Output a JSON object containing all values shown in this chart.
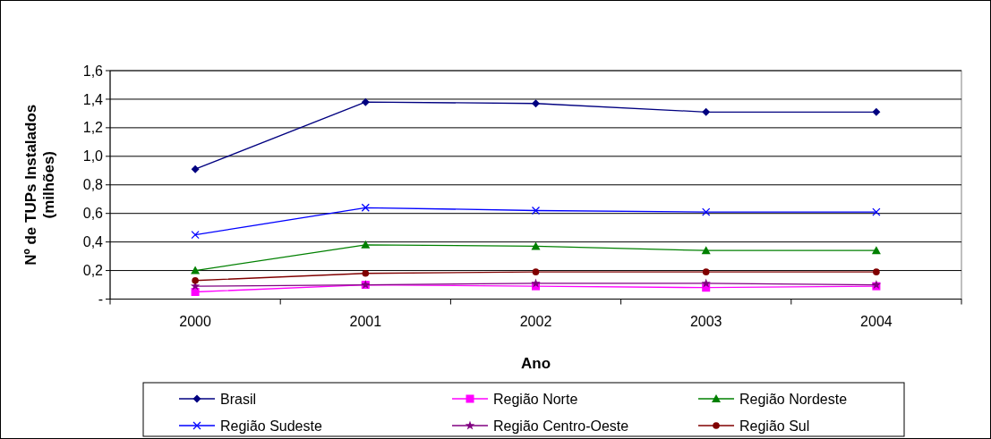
{
  "chart_data": {
    "type": "line",
    "xlabel": "Ano",
    "ylabel": "Nº de TUPs Instalados (milhões)",
    "categories": [
      "2000",
      "2001",
      "2002",
      "2003",
      "2004"
    ],
    "series": [
      {
        "name": "Brasil",
        "color": "#000080",
        "marker": "diamond",
        "values": [
          0.91,
          1.38,
          1.37,
          1.31,
          1.31
        ]
      },
      {
        "name": "Região Norte",
        "color": "#ff00ff",
        "marker": "square",
        "values": [
          0.05,
          0.1,
          0.09,
          0.08,
          0.09
        ]
      },
      {
        "name": "Região Nordeste",
        "color": "#008000",
        "marker": "triangle",
        "values": [
          0.2,
          0.38,
          0.37,
          0.34,
          0.34
        ]
      },
      {
        "name": "Região Sudeste",
        "color": "#0000ff",
        "marker": "cross",
        "values": [
          0.45,
          0.64,
          0.62,
          0.61,
          0.61
        ]
      },
      {
        "name": "Região Centro-Oeste",
        "color": "#800080",
        "marker": "star",
        "values": [
          0.09,
          0.1,
          0.11,
          0.11,
          0.1
        ]
      },
      {
        "name": "Região Sul",
        "color": "#800000",
        "marker": "circle",
        "values": [
          0.13,
          0.18,
          0.19,
          0.19,
          0.19
        ]
      }
    ],
    "ylim": [
      0,
      1.6
    ],
    "yticks": [
      {
        "value": 0,
        "label": "-"
      },
      {
        "value": 0.2,
        "label": "0,2"
      },
      {
        "value": 0.4,
        "label": "0,4"
      },
      {
        "value": 0.6,
        "label": "0,6"
      },
      {
        "value": 0.8,
        "label": "0,8"
      },
      {
        "value": 1.0,
        "label": "1,0"
      },
      {
        "value": 1.2,
        "label": "1,2"
      },
      {
        "value": 1.4,
        "label": "1,4"
      },
      {
        "value": 1.6,
        "label": "1,6"
      }
    ],
    "grid": "y",
    "legend": "bottom"
  }
}
